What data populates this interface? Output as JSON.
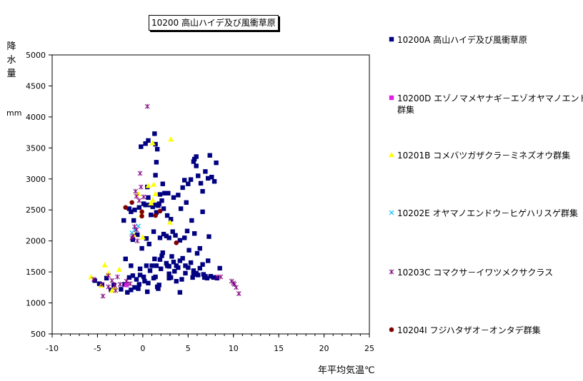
{
  "chart_data": {
    "type": "scatter",
    "title": "10200 高山ハイデ及び風衝草原",
    "xlabel": "年平均気温℃",
    "ylabel": "降水量",
    "yunit": "mm",
    "xlim": [
      -10,
      25
    ],
    "ylim": [
      500,
      5000
    ],
    "xticks": [
      -10,
      -5,
      0,
      5,
      10,
      15,
      20,
      25
    ],
    "yticks": [
      500,
      1000,
      1500,
      2000,
      2500,
      3000,
      3500,
      4000,
      4500,
      5000
    ],
    "grid": true,
    "legend_position": "right",
    "series": [
      {
        "name": "10200A 高山ハイデ及び風衝草原",
        "marker": "square",
        "color": "#000080",
        "points": [
          [
            -0.2,
            3520
          ],
          [
            0.3,
            3570
          ],
          [
            0.6,
            3620
          ],
          [
            1.3,
            3730
          ],
          [
            1.4,
            3560
          ],
          [
            1.6,
            3480
          ],
          [
            1.5,
            3270
          ],
          [
            1.4,
            3060
          ],
          [
            0.5,
            2870
          ],
          [
            0.6,
            2700
          ],
          [
            0.8,
            2580
          ],
          [
            1.1,
            2550
          ],
          [
            1.4,
            2580
          ],
          [
            1.7,
            2570
          ],
          [
            2.1,
            2650
          ],
          [
            2.4,
            2770
          ],
          [
            1.9,
            2750
          ],
          [
            2.2,
            2920
          ],
          [
            2.8,
            2770
          ],
          [
            3.4,
            2700
          ],
          [
            3.9,
            2740
          ],
          [
            4.4,
            2860
          ],
          [
            4.6,
            2980
          ],
          [
            4.8,
            2620
          ],
          [
            4.2,
            2520
          ],
          [
            5.0,
            2920
          ],
          [
            5.3,
            2990
          ],
          [
            5.6,
            3280
          ],
          [
            5.9,
            3210
          ],
          [
            6.1,
            3050
          ],
          [
            6.4,
            2930
          ],
          [
            6.6,
            2800
          ],
          [
            6.9,
            3120
          ],
          [
            7.2,
            3010
          ],
          [
            7.6,
            3030
          ],
          [
            7.9,
            2960
          ],
          [
            7.4,
            3380
          ],
          [
            8.1,
            3260
          ],
          [
            5.9,
            3360
          ],
          [
            5.7,
            3320
          ],
          [
            6.6,
            2470
          ],
          [
            7.3,
            2070
          ],
          [
            5.4,
            2330
          ],
          [
            5.7,
            2120
          ],
          [
            4.9,
            2160
          ],
          [
            4.6,
            2050
          ],
          [
            4.1,
            2010
          ],
          [
            3.6,
            2090
          ],
          [
            2.9,
            2050
          ],
          [
            2.6,
            2080
          ],
          [
            2.3,
            2110
          ],
          [
            2.1,
            1760
          ],
          [
            1.9,
            1700
          ],
          [
            2.2,
            1810
          ],
          [
            2.6,
            1640
          ],
          [
            2.9,
            1590
          ],
          [
            3.2,
            1750
          ],
          [
            3.4,
            1660
          ],
          [
            3.7,
            1600
          ],
          [
            3.9,
            1570
          ],
          [
            4.1,
            1680
          ],
          [
            4.4,
            1720
          ],
          [
            4.7,
            1600
          ],
          [
            5.0,
            1570
          ],
          [
            5.3,
            1650
          ],
          [
            5.6,
            1520
          ],
          [
            5.9,
            1480
          ],
          [
            6.3,
            1560
          ],
          [
            6.6,
            1620
          ],
          [
            6.9,
            1430
          ],
          [
            7.2,
            1680
          ],
          [
            7.5,
            1430
          ],
          [
            7.8,
            1410
          ],
          [
            8.2,
            1400
          ],
          [
            8.5,
            1560
          ],
          [
            6.0,
            1800
          ],
          [
            6.3,
            1880
          ],
          [
            5.1,
            1850
          ],
          [
            5.6,
            1460
          ],
          [
            6.1,
            1450
          ],
          [
            6.8,
            1410
          ],
          [
            4.3,
            1380
          ],
          [
            3.5,
            1510
          ],
          [
            3.1,
            1410
          ],
          [
            2.7,
            1600
          ],
          [
            2.0,
            1550
          ],
          [
            1.3,
            1710
          ],
          [
            0.8,
            1520
          ],
          [
            0.4,
            1600
          ],
          [
            0.1,
            1420
          ],
          [
            -0.3,
            1550
          ],
          [
            -0.7,
            1380
          ],
          [
            -1.1,
            1440
          ],
          [
            -1.5,
            1410
          ],
          [
            -2.0,
            1300
          ],
          [
            -2.4,
            1220
          ],
          [
            -1.7,
            1170
          ],
          [
            -1.3,
            1210
          ],
          [
            -0.5,
            1230
          ],
          [
            0.2,
            1350
          ],
          [
            0.6,
            1320
          ],
          [
            1.2,
            1400
          ],
          [
            1.6,
            1260
          ],
          [
            1.7,
            1230
          ],
          [
            4.1,
            1170
          ],
          [
            -0.1,
            1880
          ],
          [
            0.4,
            2040
          ],
          [
            0.7,
            1950
          ],
          [
            1.2,
            2150
          ],
          [
            1.9,
            2050
          ],
          [
            -0.6,
            2100
          ],
          [
            -1.0,
            2330
          ],
          [
            -1.3,
            2470
          ],
          [
            -0.9,
            2500
          ],
          [
            -0.4,
            2540
          ],
          [
            0.1,
            2600
          ],
          [
            0.3,
            2580
          ],
          [
            0.9,
            2420
          ],
          [
            1.5,
            2460
          ],
          [
            1.8,
            2600
          ],
          [
            2.3,
            2520
          ],
          [
            2.7,
            2410
          ],
          [
            3.1,
            2350
          ],
          [
            3.3,
            2150
          ],
          [
            -2.1,
            2330
          ],
          [
            -1.5,
            2520
          ],
          [
            -1.1,
            2020
          ],
          [
            -3.5,
            1210
          ],
          [
            -3.2,
            1290
          ],
          [
            -4.0,
            1400
          ],
          [
            -4.8,
            1310
          ],
          [
            -5.3,
            1360
          ],
          [
            -4.5,
            1290
          ],
          [
            -0.3,
            1450
          ],
          [
            -1.9,
            1710
          ],
          [
            -1.3,
            1600
          ],
          [
            -0.9,
            1250
          ],
          [
            -0.4,
            1300
          ],
          [
            0.5,
            1180
          ],
          [
            1.0,
            1600
          ],
          [
            1.4,
            1420
          ],
          [
            1.8,
            1290
          ],
          [
            2.9,
            1470
          ],
          [
            3.7,
            1350
          ],
          [
            4.7,
            1480
          ],
          [
            5.5,
            1410
          ],
          [
            6.7,
            1460
          ],
          [
            7.1,
            1400
          ],
          [
            2.9,
            1400
          ],
          [
            1.5,
            1600
          ]
        ]
      },
      {
        "name": "10200D エゾノマメヤナギ－エゾオヤマノエンドウ群集",
        "marker": "square",
        "color": "#e020e0",
        "points": [
          [
            -1.8,
            1290
          ]
        ]
      },
      {
        "name": "10201B コメバツガザクラ－ミネズオウ群集",
        "marker": "triangle",
        "color": "#ffff00",
        "points": [
          [
            3.1,
            3640
          ],
          [
            1.1,
            3580
          ],
          [
            1.2,
            2910
          ],
          [
            0.6,
            2890
          ],
          [
            1.4,
            2760
          ],
          [
            -0.5,
            2760
          ],
          [
            1.1,
            2660
          ],
          [
            0.9,
            2610
          ],
          [
            -0.2,
            2420
          ],
          [
            3.0,
            2300
          ],
          [
            -1.0,
            2100
          ],
          [
            0.0,
            2060
          ],
          [
            -4.2,
            1610
          ],
          [
            -2.6,
            1540
          ],
          [
            -3.8,
            1480
          ],
          [
            -5.7,
            1420
          ],
          [
            -3.4,
            1200
          ],
          [
            -4.6,
            1280
          ],
          [
            -3.1,
            1250
          ]
        ]
      },
      {
        "name": "10202E オヤマノエンドウ－ヒゲハリスゲ群集",
        "marker": "x",
        "color": "#00c0ff",
        "points": [
          [
            -0.9,
            2180
          ],
          [
            -1.2,
            2130
          ],
          [
            -0.5,
            2240
          ]
        ]
      },
      {
        "name": "10203C コマクサ－イワツメクサクラス",
        "marker": "asterisk",
        "color": "#800080",
        "points": [
          [
            0.5,
            4170
          ],
          [
            -0.3,
            3090
          ],
          [
            -0.8,
            2800
          ],
          [
            -0.7,
            2720
          ],
          [
            -0.4,
            2650
          ],
          [
            -0.2,
            2870
          ],
          [
            0.1,
            2710
          ],
          [
            -0.9,
            2230
          ],
          [
            -0.7,
            2180
          ],
          [
            -1.2,
            2050
          ],
          [
            -1.1,
            2080
          ],
          [
            -4.5,
            1300
          ],
          [
            -3.8,
            1440
          ],
          [
            -3.4,
            1360
          ],
          [
            -3.1,
            1280
          ],
          [
            -2.8,
            1420
          ],
          [
            -2.5,
            1300
          ],
          [
            -3.0,
            1200
          ],
          [
            -3.8,
            1260
          ],
          [
            -4.4,
            1110
          ],
          [
            -5.4,
            1380
          ],
          [
            -0.6,
            2000
          ],
          [
            9.8,
            1350
          ],
          [
            10.1,
            1300
          ],
          [
            10.3,
            1250
          ],
          [
            10.6,
            1150
          ],
          [
            10.0,
            1320
          ],
          [
            8.2,
            1420
          ],
          [
            8.6,
            1420
          ],
          [
            -1.4,
            1310
          ],
          [
            -1.8,
            1350
          ]
        ]
      },
      {
        "name": "10204I フジハタザオ－オンタデ群集",
        "marker": "circle",
        "color": "#800000",
        "points": [
          [
            -1.2,
            2620
          ],
          [
            -1.9,
            2540
          ],
          [
            -0.1,
            2470
          ],
          [
            -0.1,
            2400
          ],
          [
            1.4,
            2410
          ],
          [
            1.9,
            2480
          ],
          [
            3.7,
            1970
          ]
        ]
      }
    ]
  }
}
